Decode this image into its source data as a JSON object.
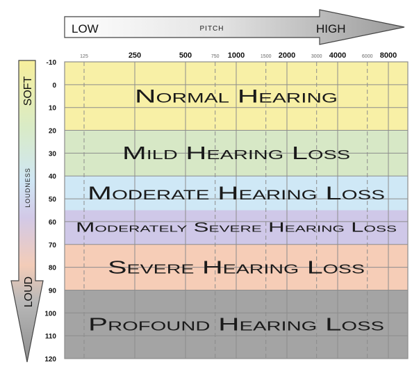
{
  "pitch_arrow": {
    "low": "LOW",
    "label": "PITCH",
    "high": "HIGH"
  },
  "loudness_arrow": {
    "soft": "SOFT",
    "label": "LOUDNESS",
    "loud": "LOUD"
  },
  "chart_data": {
    "type": "table",
    "x_axis": {
      "scale": "log",
      "unit": "Hz",
      "ticks": [
        {
          "value": 125,
          "label": "125",
          "major": false
        },
        {
          "value": 250,
          "label": "250",
          "major": true
        },
        {
          "value": 500,
          "label": "500",
          "major": true
        },
        {
          "value": 750,
          "label": "750",
          "major": false
        },
        {
          "value": 1000,
          "label": "1000",
          "major": true
        },
        {
          "value": 1500,
          "label": "1500",
          "major": false
        },
        {
          "value": 2000,
          "label": "2000",
          "major": true
        },
        {
          "value": 3000,
          "label": "3000",
          "major": false
        },
        {
          "value": 4000,
          "label": "4000",
          "major": true
        },
        {
          "value": 6000,
          "label": "6000",
          "major": false
        },
        {
          "value": 8000,
          "label": "8000",
          "major": true
        }
      ]
    },
    "y_axis": {
      "range": [
        -10,
        120
      ],
      "inverted": true,
      "ticks": [
        "-10",
        "0",
        "10",
        "20",
        "30",
        "40",
        "50",
        "60",
        "70",
        "80",
        "90",
        "100",
        "110",
        "120"
      ]
    },
    "bands": [
      {
        "label": "Normal Hearing",
        "from": -10,
        "to": 20,
        "color": "#f8f0a6"
      },
      {
        "label": "Mild Hearing Loss",
        "from": 20,
        "to": 40,
        "color": "#d7e8c6"
      },
      {
        "label": "Moderate Hearing Loss",
        "from": 40,
        "to": 55,
        "color": "#cfe8f6"
      },
      {
        "label": "Moderately Severe Hearing Loss",
        "from": 55,
        "to": 70,
        "color": "#cfc8e8"
      },
      {
        "label": "Severe Hearing Loss",
        "from": 70,
        "to": 90,
        "color": "#f6cdb7"
      },
      {
        "label": "Profound Hearing Loss",
        "from": 90,
        "to": 120,
        "color": "#a4a4a4"
      }
    ]
  }
}
